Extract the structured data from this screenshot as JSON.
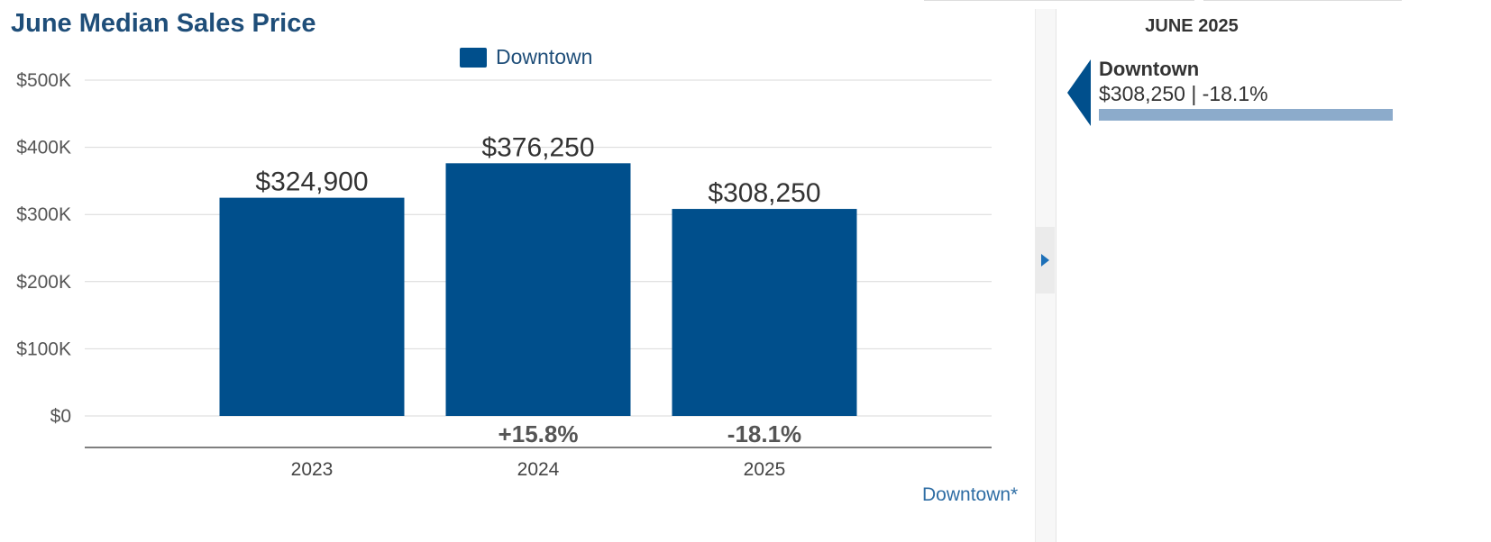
{
  "chart_data": {
    "type": "bar",
    "title": "June Median Sales Price",
    "categories": [
      "2023",
      "2024",
      "2025"
    ],
    "series": [
      {
        "name": "Downtown",
        "values": [
          324900,
          376250,
          308250
        ],
        "color": "#004f8c"
      }
    ],
    "value_labels": [
      "$324,900",
      "$376,250",
      "$308,250"
    ],
    "change_labels": [
      "",
      "+15.8%",
      "-18.1%"
    ],
    "y_ticks": [
      {
        "value": 0,
        "label": "$0"
      },
      {
        "value": 100000,
        "label": "$100K"
      },
      {
        "value": 200000,
        "label": "$200K"
      },
      {
        "value": 300000,
        "label": "$300K"
      },
      {
        "value": 400000,
        "label": "$400K"
      },
      {
        "value": 500000,
        "label": "$500K"
      }
    ],
    "ylim": [
      0,
      500000
    ],
    "grid": true,
    "legend_position": "top-center"
  },
  "legend": {
    "label": "Downtown"
  },
  "footnote": "Downtown*",
  "side_panel": {
    "title": "JUNE 2025",
    "area_name": "Downtown",
    "summary": "$308,250 | -18.1%",
    "bar_fraction": 1.0
  },
  "colors": {
    "accent": "#004f8c",
    "title": "#1f4e79",
    "panel_bar": "#8cabcb",
    "link": "#2e6da4"
  }
}
